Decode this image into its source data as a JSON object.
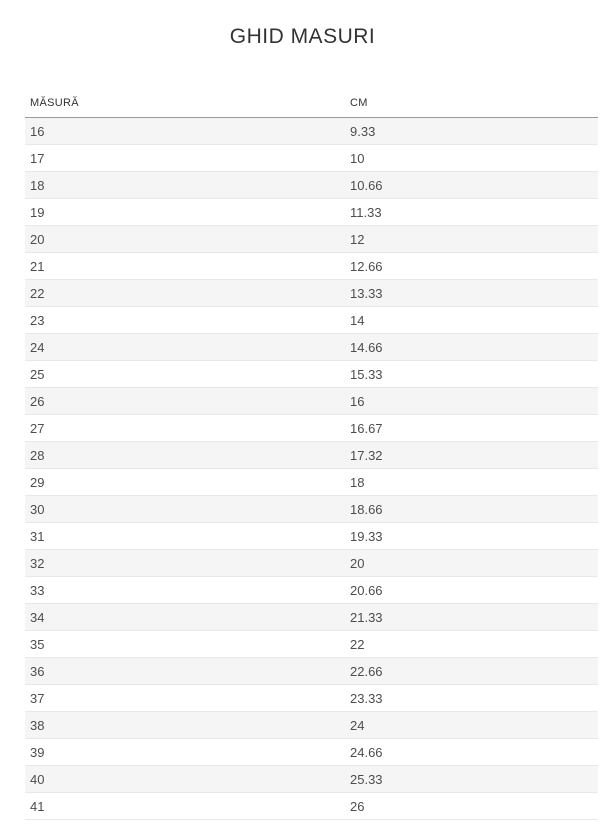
{
  "page": {
    "title": "GHID MASURI"
  },
  "table": {
    "headers": {
      "size": "MĂSURĂ",
      "cm": "CM"
    },
    "rows": [
      {
        "size": "16",
        "cm": "9.33"
      },
      {
        "size": "17",
        "cm": "10"
      },
      {
        "size": "18",
        "cm": "10.66"
      },
      {
        "size": "19",
        "cm": "11.33"
      },
      {
        "size": "20",
        "cm": "12"
      },
      {
        "size": "21",
        "cm": "12.66"
      },
      {
        "size": "22",
        "cm": "13.33"
      },
      {
        "size": "23",
        "cm": "14"
      },
      {
        "size": "24",
        "cm": "14.66"
      },
      {
        "size": "25",
        "cm": "15.33"
      },
      {
        "size": "26",
        "cm": "16"
      },
      {
        "size": "27",
        "cm": "16.67"
      },
      {
        "size": "28",
        "cm": "17.32"
      },
      {
        "size": "29",
        "cm": "18"
      },
      {
        "size": "30",
        "cm": "18.66"
      },
      {
        "size": "31",
        "cm": "19.33"
      },
      {
        "size": "32",
        "cm": "20"
      },
      {
        "size": "33",
        "cm": "20.66"
      },
      {
        "size": "34",
        "cm": "21.33"
      },
      {
        "size": "35",
        "cm": "22"
      },
      {
        "size": "36",
        "cm": "22.66"
      },
      {
        "size": "37",
        "cm": "23.33"
      },
      {
        "size": "38",
        "cm": "24"
      },
      {
        "size": "39",
        "cm": "24.66"
      },
      {
        "size": "40",
        "cm": "25.33"
      },
      {
        "size": "41",
        "cm": "26"
      }
    ]
  },
  "colors": {
    "title_text": "#333333",
    "header_text": "#333333",
    "cell_text": "#4d4d4d",
    "alt_row_background": "#f5f5f5",
    "header_border": "#999999",
    "row_border": "#e8e8e8",
    "page_background": "#ffffff"
  }
}
